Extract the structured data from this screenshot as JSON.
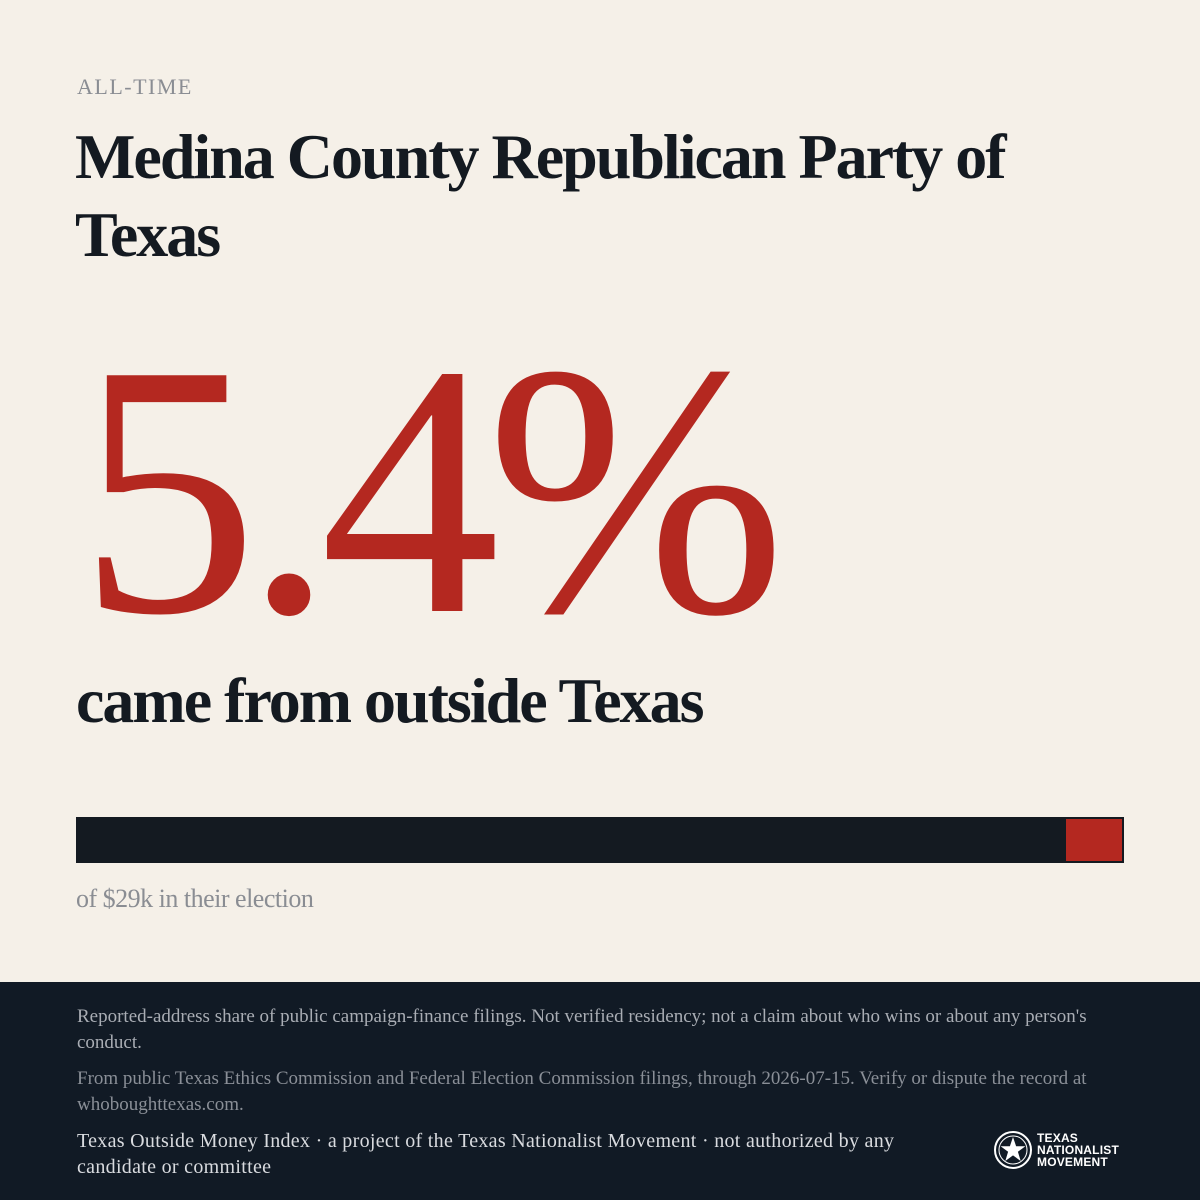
{
  "header": {
    "eyebrow": "ALL-TIME",
    "title": "Medina County Republican Party of Texas"
  },
  "stat": {
    "value": "5.4%",
    "outside_share": 0.054,
    "subhead": "came from outside Texas"
  },
  "bar": {
    "caption": "of $29k in their election"
  },
  "footer": {
    "disclaimer": "Reported-address share of public campaign-finance filings. Not verified residency; not a claim about who wins or about any person's conduct.",
    "source": "From public Texas Ethics Commission and Federal Election Commission filings, through 2026-07-15. Verify or dispute the record at whoboughttexas.com.",
    "credit": "Texas Outside Money Index · a project of the Texas Nationalist Movement · not authorized by any candidate or committee",
    "logo_lines": [
      "TEXAS",
      "NATIONALIST",
      "MOVEMENT"
    ]
  },
  "colors": {
    "accent": "#b42820",
    "ink": "#141a21",
    "background": "#f5f0e8",
    "footer": "#111a25"
  }
}
